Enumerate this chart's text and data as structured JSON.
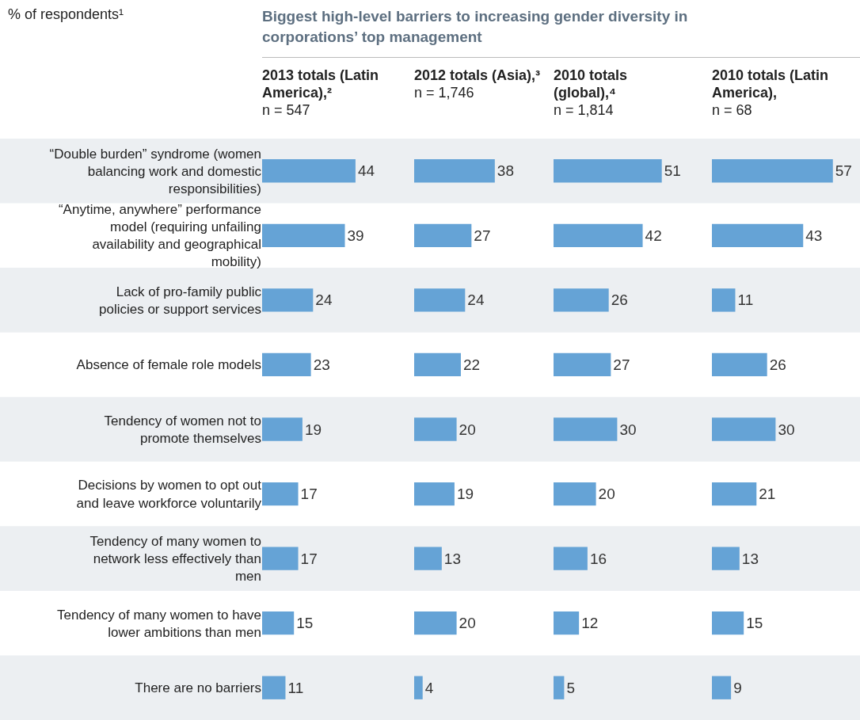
{
  "chart_data": [
    {
      "type": "bar",
      "orientation": "horizontal",
      "title": "2013 totals (Latin America),²",
      "subtitle": "n = 547",
      "annotations": [
        "% of respondents¹",
        "Biggest high-level barriers to increasing gender diversity in corporations’ top management"
      ],
      "categories": [
        "“Double burden” syndrome (women balancing work and domestic responsibilities)",
        "“Anytime, anywhere” performance model (requiring unfailing availability and geographical mobility)",
        "Lack of pro-family public policies or support services",
        "Absence of female role models",
        "Tendency of women not to promote themselves",
        "Decisions by women to opt out and leave workforce voluntarily",
        "Tendency of many women to network less effectively than men",
        "Tendency of many women to have lower ambitions than men",
        "There are no barriers"
      ],
      "values": [
        44,
        39,
        24,
        23,
        19,
        17,
        17,
        15,
        11
      ],
      "color": "#65a3d6",
      "data_labels": true,
      "tick_labels": "y"
    },
    {
      "type": "bar",
      "orientation": "horizontal",
      "title": "2012 totals (Asia),³",
      "subtitle": "n = 1,746",
      "categories": [
        "“Double burden” syndrome (women balancing work and domestic responsibilities)",
        "“Anytime, anywhere” performance model (requiring unfailing availability and geographical mobility)",
        "Lack of pro-family public policies or support services",
        "Absence of female role models",
        "Tendency of women not to promote themselves",
        "Decisions by women to opt out and leave workforce voluntarily",
        "Tendency of many women to network less effectively than men",
        "Tendency of many women to have lower ambitions than men",
        "There are no barriers"
      ],
      "values": [
        38,
        27,
        24,
        22,
        20,
        19,
        13,
        20,
        4
      ],
      "color": "#65a3d6",
      "data_labels": true,
      "tick_labels": false
    },
    {
      "type": "bar",
      "orientation": "horizontal",
      "title": "2010 totals (global),⁴",
      "subtitle": "n = 1,814",
      "categories": [
        "“Double burden” syndrome (women balancing work and domestic responsibilities)",
        "“Anytime, anywhere” performance model (requiring unfailing availability and geographical mobility)",
        "Lack of pro-family public policies or support services",
        "Absence of female role models",
        "Tendency of women not to promote themselves",
        "Decisions by women to opt out and leave workforce voluntarily",
        "Tendency of many women to network less effectively than men",
        "Tendency of many women to have lower ambitions than men",
        "There are no barriers"
      ],
      "values": [
        51,
        42,
        26,
        27,
        30,
        20,
        16,
        12,
        5
      ],
      "color": "#65a3d6",
      "data_labels": true,
      "tick_labels": false
    },
    {
      "type": "bar",
      "orientation": "horizontal",
      "title": "2010 totals (Latin America),",
      "subtitle": "n = 68",
      "categories": [
        "“Double burden” syndrome (women balancing work and domestic responsibilities)",
        "“Anytime, anywhere” performance model (requiring unfailing availability and geographical mobility)",
        "Lack of pro-family public policies or support services",
        "Absence of female role models",
        "Tendency of women not to promote themselves",
        "Decisions by women to opt out and leave workforce voluntarily",
        "Tendency of many women to network less effectively than men",
        "Tendency of many women to have lower ambitions than men",
        "There are no barriers"
      ],
      "values": [
        57,
        43,
        11,
        26,
        30,
        21,
        13,
        15,
        9
      ],
      "color": "#65a3d6",
      "data_labels": true,
      "tick_labels": false
    }
  ]
}
